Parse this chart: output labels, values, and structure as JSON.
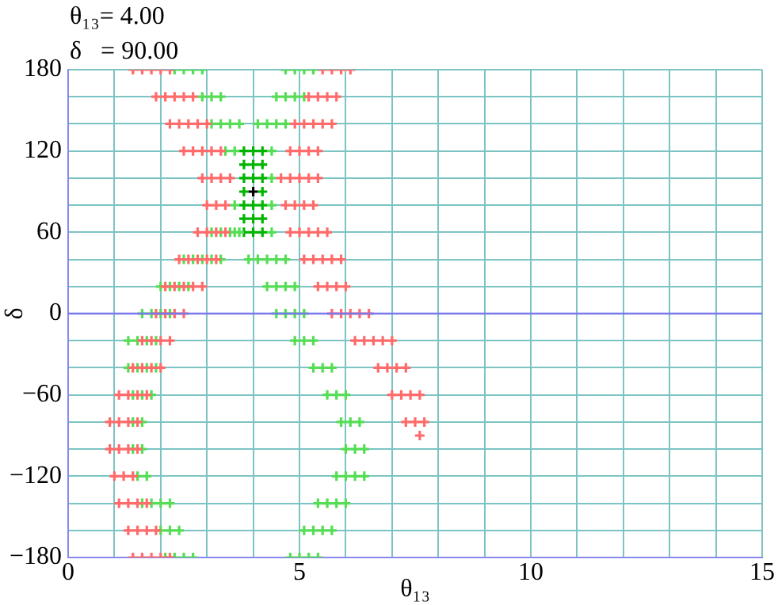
{
  "chart_data": {
    "type": "scatter",
    "xlabel": "θ₁₃",
    "ylabel": "δ",
    "annotations": [
      "θ₁₃= 4.00",
      "δ   = 90.00"
    ],
    "xlim": [
      0,
      15
    ],
    "ylim": [
      -180,
      180
    ],
    "xticks": [
      0,
      {
        "value": 1,
        "label": null
      },
      {
        "value": 2,
        "label": null
      },
      {
        "value": 3,
        "label": null
      },
      {
        "value": 4,
        "label": null
      },
      5,
      {
        "value": 6,
        "label": null
      },
      {
        "value": 7,
        "label": null
      },
      {
        "value": 8,
        "label": null
      },
      {
        "value": 9,
        "label": null
      },
      10,
      {
        "value": 11,
        "label": null
      },
      {
        "value": 12,
        "label": null
      },
      {
        "value": 13,
        "label": null
      },
      {
        "value": 14,
        "label": null
      },
      15
    ],
    "yticks": [
      -180,
      {
        "value": -160,
        "label": null
      },
      {
        "value": -140,
        "label": null
      },
      -120,
      {
        "value": -100,
        "label": null
      },
      {
        "value": -80,
        "label": null
      },
      -60,
      {
        "value": -40,
        "label": null
      },
      {
        "value": -20,
        "label": null
      },
      0,
      {
        "value": 20,
        "label": null
      },
      {
        "value": 40,
        "label": null
      },
      60,
      {
        "value": 80,
        "label": null
      },
      {
        "value": 100,
        "label": null
      },
      120,
      {
        "value": 140,
        "label": null
      },
      {
        "value": 160,
        "label": null
      },
      180
    ],
    "grid": true,
    "marker": "cross",
    "ref_lines": [
      {
        "axis": "y",
        "value": 0,
        "color": "#7777ee"
      }
    ],
    "series": [
      {
        "color": "#ff6b6b",
        "x": [
          1.4,
          1.6,
          1.8,
          2.0,
          2.2,
          1.9,
          2.1,
          2.3,
          2.5,
          2.7,
          2.2,
          2.4,
          2.6,
          2.8,
          3.0,
          2.5,
          2.7,
          2.9,
          3.1,
          3.3,
          2.9,
          3.1,
          3.3,
          3.5,
          3.0,
          3.2,
          3.4,
          2.8,
          3.0,
          3.2,
          3.4,
          2.4,
          2.6,
          2.8,
          3.0,
          3.2,
          2.1,
          2.3,
          2.5,
          2.7,
          2.9,
          1.9,
          2.1,
          2.3,
          2.5,
          1.6,
          1.8,
          2.0,
          2.2,
          1.4,
          1.6,
          1.8,
          2.0,
          1.1,
          1.3,
          1.5,
          1.7,
          0.9,
          1.1,
          1.3,
          1.5,
          0.9,
          1.1,
          1.3,
          1.5,
          1.0,
          1.2,
          1.4,
          1.1,
          1.3,
          1.5,
          1.7,
          1.3,
          1.5,
          1.7,
          1.9,
          1.4,
          1.6,
          1.8,
          2.0,
          2.2,
          5.5,
          5.7,
          5.9,
          6.1,
          5.2,
          5.4,
          5.6,
          5.8,
          4.9,
          5.1,
          5.3,
          5.5,
          5.7,
          4.8,
          5.0,
          5.2,
          5.4,
          4.6,
          4.8,
          5.0,
          5.2,
          5.4,
          4.7,
          4.9,
          5.1,
          5.3,
          4.8,
          5.0,
          5.2,
          5.4,
          5.6,
          5.1,
          5.3,
          5.5,
          5.7,
          5.9,
          5.4,
          5.6,
          5.8,
          6.0,
          5.7,
          5.9,
          6.1,
          6.3,
          6.5,
          6.2,
          6.4,
          6.6,
          6.8,
          7.0,
          6.7,
          6.9,
          7.1,
          7.3,
          7.0,
          7.2,
          7.4,
          7.6,
          7.3,
          7.5,
          7.7,
          7.6
        ],
        "values": [
          180,
          180,
          180,
          180,
          180,
          160,
          160,
          160,
          160,
          160,
          140,
          140,
          140,
          140,
          140,
          120,
          120,
          120,
          120,
          120,
          100,
          100,
          100,
          100,
          80,
          80,
          80,
          60,
          60,
          60,
          60,
          40,
          40,
          40,
          40,
          40,
          20,
          20,
          20,
          20,
          20,
          0,
          0,
          0,
          0,
          -20,
          -20,
          -20,
          -20,
          -40,
          -40,
          -40,
          -40,
          -60,
          -60,
          -60,
          -60,
          -80,
          -80,
          -80,
          -80,
          -100,
          -100,
          -100,
          -100,
          -120,
          -120,
          -120,
          -140,
          -140,
          -140,
          -140,
          -160,
          -160,
          -160,
          -160,
          -180,
          -180,
          -180,
          -180,
          -180,
          180,
          180,
          180,
          180,
          160,
          160,
          160,
          160,
          140,
          140,
          140,
          140,
          140,
          120,
          120,
          120,
          120,
          100,
          100,
          100,
          100,
          100,
          80,
          80,
          80,
          80,
          60,
          60,
          60,
          60,
          60,
          40,
          40,
          40,
          40,
          40,
          20,
          20,
          20,
          20,
          0,
          0,
          0,
          0,
          0,
          -20,
          -20,
          -20,
          -20,
          -20,
          -40,
          -40,
          -40,
          -40,
          -60,
          -60,
          -60,
          -60,
          -80,
          -80,
          -80,
          -90
        ]
      },
      {
        "color": "#55dd55",
        "x": [
          2.3,
          2.5,
          2.7,
          2.9,
          2.9,
          3.1,
          3.3,
          3.1,
          3.3,
          3.5,
          3.7,
          3.4,
          3.6,
          3.6,
          3.6,
          4.4,
          3.9,
          4.1,
          4.3,
          4.5,
          4.7,
          4.3,
          4.5,
          4.7,
          4.9,
          4.5,
          4.7,
          4.9,
          5.1,
          4.9,
          5.1,
          5.3,
          5.3,
          5.5,
          5.7,
          5.6,
          5.8,
          6.0,
          5.9,
          6.1,
          6.3,
          6.0,
          6.2,
          6.4,
          5.8,
          6.0,
          6.2,
          6.4,
          5.4,
          5.6,
          5.8,
          6.0,
          5.1,
          5.3,
          5.5,
          5.7,
          4.8,
          5.0,
          5.2,
          5.4,
          4.7,
          4.9,
          5.1,
          5.3,
          4.5,
          4.7,
          4.9,
          5.1,
          4.1,
          4.3,
          4.5,
          4.7,
          4.4,
          4.4,
          4.4,
          3.1,
          3.3,
          3.5,
          3.7,
          2.5,
          2.7,
          2.9,
          3.1,
          3.3,
          2.0,
          2.2,
          2.4,
          2.6,
          1.6,
          1.8,
          2.0,
          2.2,
          1.3,
          1.5,
          1.7,
          1.9,
          1.3,
          1.5,
          1.7,
          1.9,
          1.4,
          1.6,
          1.8,
          1.4,
          1.6,
          1.4,
          1.6,
          1.5,
          1.7,
          1.6,
          1.8,
          2.0,
          2.2,
          2.0,
          2.2,
          2.4,
          2.1,
          2.3,
          2.5,
          2.7
        ],
        "values": [
          180,
          180,
          180,
          180,
          160,
          160,
          160,
          140,
          140,
          140,
          140,
          120,
          120,
          80,
          60,
          60,
          40,
          40,
          40,
          40,
          40,
          20,
          20,
          20,
          20,
          0,
          0,
          0,
          0,
          -20,
          -20,
          -20,
          -40,
          -40,
          -40,
          -60,
          -60,
          -60,
          -80,
          -80,
          -80,
          -100,
          -100,
          -100,
          -120,
          -120,
          -120,
          -120,
          -140,
          -140,
          -140,
          -140,
          -160,
          -160,
          -160,
          -160,
          -180,
          -180,
          -180,
          -180,
          180,
          180,
          180,
          180,
          160,
          160,
          160,
          160,
          140,
          140,
          140,
          140,
          120,
          100,
          80,
          60,
          60,
          60,
          60,
          40,
          40,
          40,
          40,
          40,
          20,
          20,
          20,
          20,
          0,
          0,
          0,
          0,
          -20,
          -20,
          -20,
          -20,
          -40,
          -40,
          -40,
          -40,
          -60,
          -60,
          -60,
          -80,
          -80,
          -100,
          -100,
          -120,
          -120,
          -140,
          -140,
          -140,
          -140,
          -160,
          -160,
          -160,
          -180,
          -180,
          -180,
          -180
        ]
      },
      {
        "color": "#00b400",
        "x": [
          3.8,
          4.0,
          4.2,
          3.8,
          4.0,
          4.2,
          3.8,
          4.0,
          4.2,
          3.8,
          4.2,
          3.8,
          4.0,
          4.2,
          3.8,
          4.0,
          4.2,
          3.8,
          4.0,
          4.2
        ],
        "values": [
          60,
          60,
          60,
          70,
          70,
          70,
          80,
          80,
          80,
          90,
          90,
          100,
          100,
          100,
          110,
          110,
          110,
          120,
          120,
          120
        ]
      },
      {
        "color": "#000000",
        "x": [
          4
        ],
        "values": [
          90
        ]
      }
    ]
  }
}
